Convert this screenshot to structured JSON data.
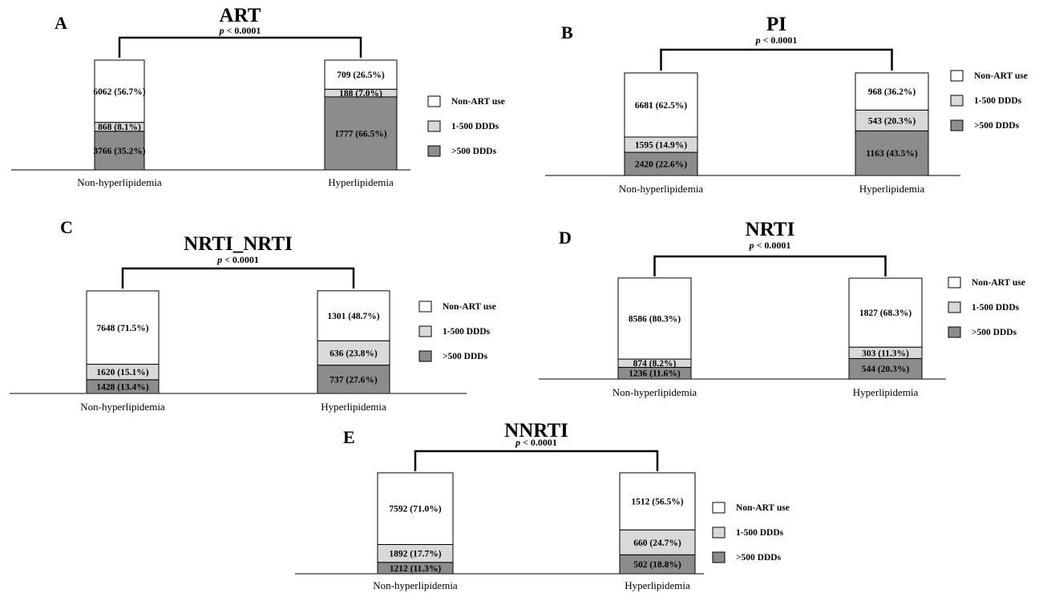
{
  "legend": [
    {
      "label": "Non-ART use",
      "color": "#ffffff"
    },
    {
      "label": "1-500 DDDs",
      "color": "#d9d9d9"
    },
    {
      "label": ">500 DDDs",
      "color": "#8c8c8c"
    }
  ],
  "p_prefix": "p",
  "chart_data": [
    {
      "type": "bar",
      "stacked": true,
      "letter": "A",
      "title": "ART",
      "pvalue": " < 0.0001",
      "categories": [
        "Non-hyperlipidemia",
        "Hyperlipidemia"
      ],
      "series": [
        {
          "name": ">500 DDDs",
          "values": [
            3766,
            1777
          ],
          "percent": [
            35.2,
            66.5
          ],
          "labels": [
            "3766 (35.2%)",
            "1777 (66.5%)"
          ]
        },
        {
          "name": "1-500 DDDs",
          "values": [
            868,
            188
          ],
          "percent": [
            8.1,
            7.0
          ],
          "labels": [
            "868 (8.1%)",
            "188 (7.0%)"
          ]
        },
        {
          "name": "Non-ART use",
          "values": [
            6062,
            709
          ],
          "percent": [
            56.7,
            26.5
          ],
          "labels": [
            "6062 (56.7%)",
            "709 (26.5%)"
          ]
        }
      ]
    },
    {
      "type": "bar",
      "stacked": true,
      "letter": "B",
      "title": "PI",
      "pvalue": " < 0.0001",
      "categories": [
        "Non-hyperlipidemia",
        "Hyperlipidemia"
      ],
      "series": [
        {
          "name": ">500 DDDs",
          "values": [
            2420,
            1163
          ],
          "percent": [
            22.6,
            43.5
          ],
          "labels": [
            "2420 (22.6%)",
            "1163 (43.5%)"
          ]
        },
        {
          "name": "1-500 DDDs",
          "values": [
            1595,
            543
          ],
          "percent": [
            14.9,
            20.3
          ],
          "labels": [
            "1595 (14.9%)",
            "543 (20.3%)"
          ]
        },
        {
          "name": "Non-ART use",
          "values": [
            6681,
            968
          ],
          "percent": [
            62.5,
            36.2
          ],
          "labels": [
            "6681 (62.5%)",
            "968 (36.2%)"
          ]
        }
      ]
    },
    {
      "type": "bar",
      "stacked": true,
      "letter": "C",
      "title": "NRTI_NRTI",
      "pvalue": " < 0.0001",
      "categories": [
        "Non-hyperlipidemia",
        "Hyperlipidemia"
      ],
      "series": [
        {
          "name": ">500 DDDs",
          "values": [
            1428,
            737
          ],
          "percent": [
            13.4,
            27.6
          ],
          "labels": [
            "1428 (13.4%)",
            "737 (27.6%)"
          ]
        },
        {
          "name": "1-500 DDDs",
          "values": [
            1620,
            636
          ],
          "percent": [
            15.1,
            23.8
          ],
          "labels": [
            "1620 (15.1%)",
            "636 (23.8%)"
          ]
        },
        {
          "name": "Non-ART use",
          "values": [
            7648,
            1301
          ],
          "percent": [
            71.5,
            48.7
          ],
          "labels": [
            "7648 (71.5%)",
            "1301 (48.7%)"
          ]
        }
      ]
    },
    {
      "type": "bar",
      "stacked": true,
      "letter": "D",
      "title": "NRTI",
      "pvalue": " < 0.0001",
      "categories": [
        "Non-hyperlipidemia",
        "Hyperlipidemia"
      ],
      "series": [
        {
          "name": ">500 DDDs",
          "values": [
            1236,
            544
          ],
          "percent": [
            11.6,
            20.3
          ],
          "labels": [
            "1236 (11.6%)",
            "544 (20.3%)"
          ]
        },
        {
          "name": "1-500 DDDs",
          "values": [
            874,
            303
          ],
          "percent": [
            8.2,
            11.3
          ],
          "labels": [
            "874 (8.2%)",
            "303 (11.3%)"
          ]
        },
        {
          "name": "Non-ART use",
          "values": [
            8586,
            1827
          ],
          "percent": [
            80.3,
            68.3
          ],
          "labels": [
            "8586 (80.3%)",
            "1827 (68.3%)"
          ]
        }
      ]
    },
    {
      "type": "bar",
      "stacked": true,
      "letter": "E",
      "title": "NNRTI",
      "pvalue": " < 0.0001",
      "categories": [
        "Non-hyperlipidemia",
        "Hyperlipidemia"
      ],
      "series": [
        {
          "name": ">500 DDDs",
          "values": [
            1212,
            502
          ],
          "percent": [
            11.3,
            18.8
          ],
          "labels": [
            "1212 (11.3%)",
            "502 (18.8%)"
          ]
        },
        {
          "name": "1-500 DDDs",
          "values": [
            1892,
            660
          ],
          "percent": [
            17.7,
            24.7
          ],
          "labels": [
            "1892 (17.7%)",
            "660 (24.7%)"
          ]
        },
        {
          "name": "Non-ART use",
          "values": [
            7592,
            1512
          ],
          "percent": [
            71.0,
            56.5
          ],
          "labels": [
            "7592 (71.0%)",
            "1512 (56.5%)"
          ]
        }
      ]
    }
  ]
}
